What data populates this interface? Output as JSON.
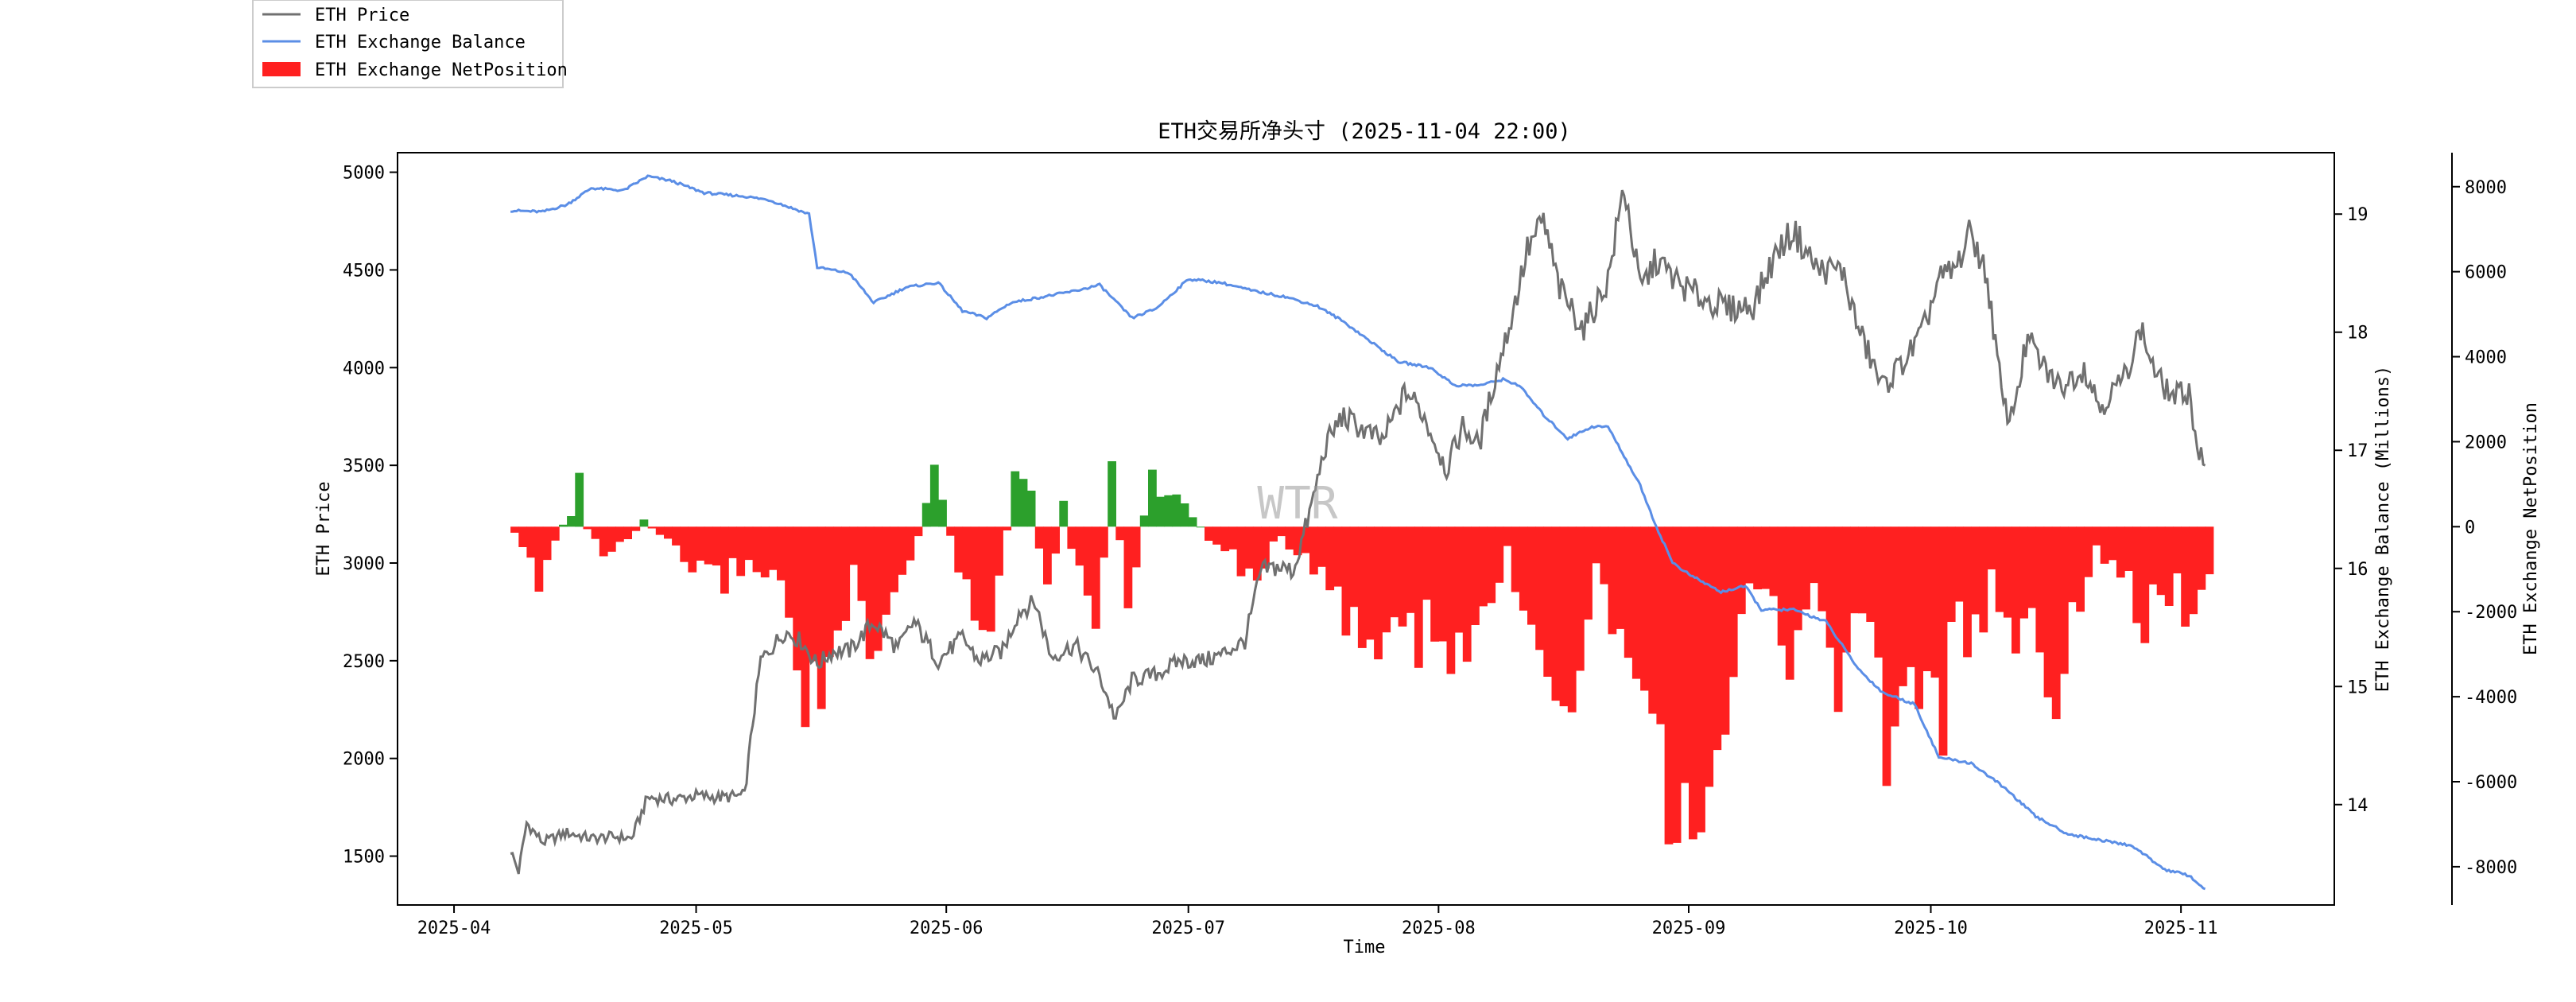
{
  "chart_data": {
    "type": "line",
    "title": "ETH交易所净头寸 (2025-11-04 22:00)",
    "xlabel": "Time",
    "watermark": "WTR",
    "x_range": [
      "2025-04-08",
      "2025-11-04"
    ],
    "x_ticks": [
      {
        "date": "2025-04-01",
        "label": "2025-04"
      },
      {
        "date": "2025-05-01",
        "label": "2025-05"
      },
      {
        "date": "2025-06-01",
        "label": "2025-06"
      },
      {
        "date": "2025-07-01",
        "label": "2025-07"
      },
      {
        "date": "2025-08-01",
        "label": "2025-08"
      },
      {
        "date": "2025-09-01",
        "label": "2025-09"
      },
      {
        "date": "2025-10-01",
        "label": "2025-10"
      },
      {
        "date": "2025-11-01",
        "label": "2025-11"
      }
    ],
    "axes": {
      "price": {
        "label": "ETH Price",
        "ylim": [
          1250,
          5100
        ],
        "ticks": [
          1500,
          2000,
          2500,
          3000,
          3500,
          4000,
          4500,
          5000
        ]
      },
      "balance": {
        "label": "ETH Exchange Balance (Millions)",
        "ylim": [
          13.15,
          19.52
        ],
        "ticks": [
          14,
          15,
          16,
          17,
          18,
          19
        ]
      },
      "netposition": {
        "label": "ETH Exchange NetPosition",
        "ylim": [
          -8900,
          8800
        ],
        "ticks": [
          -8000,
          -6000,
          -4000,
          -2000,
          0,
          2000,
          4000,
          6000,
          8000
        ]
      }
    },
    "legend": {
      "placement": "outside-top-left",
      "entries": [
        "ETH Price",
        "ETH Exchange Balance",
        "ETH Exchange NetPosition"
      ]
    },
    "colors": {
      "price": "#707070",
      "balance": "#5b8ee6",
      "net_negative": "#ff2020",
      "net_positive": "#2ca02c"
    },
    "series": [
      {
        "name": "ETH Price",
        "axis": "price",
        "style": "line",
        "points": [
          [
            "2025-04-08",
            1530
          ],
          [
            "2025-04-09",
            1420
          ],
          [
            "2025-04-10",
            1670
          ],
          [
            "2025-04-12",
            1570
          ],
          [
            "2025-04-15",
            1620
          ],
          [
            "2025-04-18",
            1590
          ],
          [
            "2025-04-21",
            1600
          ],
          [
            "2025-04-23",
            1590
          ],
          [
            "2025-04-25",
            1800
          ],
          [
            "2025-04-28",
            1790
          ],
          [
            "2025-05-01",
            1810
          ],
          [
            "2025-05-04",
            1800
          ],
          [
            "2025-05-07",
            1810
          ],
          [
            "2025-05-08",
            2180
          ],
          [
            "2025-05-09",
            2500
          ],
          [
            "2025-05-10",
            2550
          ],
          [
            "2025-05-12",
            2650
          ],
          [
            "2025-05-14",
            2600
          ],
          [
            "2025-05-16",
            2480
          ],
          [
            "2025-05-18",
            2550
          ],
          [
            "2025-05-20",
            2550
          ],
          [
            "2025-05-23",
            2700
          ],
          [
            "2025-05-26",
            2560
          ],
          [
            "2025-05-28",
            2700
          ],
          [
            "2025-05-31",
            2500
          ],
          [
            "2025-06-03",
            2620
          ],
          [
            "2025-06-05",
            2500
          ],
          [
            "2025-06-08",
            2550
          ],
          [
            "2025-06-10",
            2750
          ],
          [
            "2025-06-12",
            2800
          ],
          [
            "2025-06-14",
            2520
          ],
          [
            "2025-06-17",
            2580
          ],
          [
            "2025-06-20",
            2420
          ],
          [
            "2025-06-22",
            2200
          ],
          [
            "2025-06-24",
            2400
          ],
          [
            "2025-06-27",
            2430
          ],
          [
            "2025-06-30",
            2500
          ],
          [
            "2025-07-03",
            2500
          ],
          [
            "2025-07-05",
            2530
          ],
          [
            "2025-07-08",
            2600
          ],
          [
            "2025-07-09",
            2780
          ],
          [
            "2025-07-10",
            2960
          ],
          [
            "2025-07-12",
            2980
          ],
          [
            "2025-07-14",
            2960
          ],
          [
            "2025-07-16",
            3250
          ],
          [
            "2025-07-18",
            3600
          ],
          [
            "2025-07-20",
            3750
          ],
          [
            "2025-07-22",
            3700
          ],
          [
            "2025-07-25",
            3620
          ],
          [
            "2025-07-28",
            3880
          ],
          [
            "2025-07-30",
            3770
          ],
          [
            "2025-08-02",
            3480
          ],
          [
            "2025-08-04",
            3700
          ],
          [
            "2025-08-06",
            3600
          ],
          [
            "2025-08-08",
            3950
          ],
          [
            "2025-08-10",
            4250
          ],
          [
            "2025-08-12",
            4600
          ],
          [
            "2025-08-14",
            4750
          ],
          [
            "2025-08-16",
            4400
          ],
          [
            "2025-08-19",
            4200
          ],
          [
            "2025-08-22",
            4450
          ],
          [
            "2025-08-24",
            4930
          ],
          [
            "2025-08-26",
            4400
          ],
          [
            "2025-08-28",
            4550
          ],
          [
            "2025-08-31",
            4420
          ],
          [
            "2025-09-03",
            4350
          ],
          [
            "2025-09-06",
            4300
          ],
          [
            "2025-09-09",
            4320
          ],
          [
            "2025-09-12",
            4600
          ],
          [
            "2025-09-14",
            4700
          ],
          [
            "2025-09-17",
            4500
          ],
          [
            "2025-09-20",
            4500
          ],
          [
            "2025-09-22",
            4200
          ],
          [
            "2025-09-25",
            3900
          ],
          [
            "2025-09-28",
            4050
          ],
          [
            "2025-09-30",
            4180
          ],
          [
            "2025-10-02",
            4450
          ],
          [
            "2025-10-04",
            4500
          ],
          [
            "2025-10-06",
            4700
          ],
          [
            "2025-10-08",
            4450
          ],
          [
            "2025-10-10",
            3800
          ],
          [
            "2025-10-11",
            3750
          ],
          [
            "2025-10-13",
            4150
          ],
          [
            "2025-10-15",
            4000
          ],
          [
            "2025-10-17",
            3900
          ],
          [
            "2025-10-20",
            4000
          ],
          [
            "2025-10-22",
            3800
          ],
          [
            "2025-10-25",
            3950
          ],
          [
            "2025-10-27",
            4200
          ],
          [
            "2025-10-29",
            3950
          ],
          [
            "2025-10-31",
            3850
          ],
          [
            "2025-11-02",
            3880
          ],
          [
            "2025-11-03",
            3600
          ],
          [
            "2025-11-04",
            3480
          ]
        ]
      },
      {
        "name": "ETH Exchange Balance",
        "axis": "balance",
        "style": "line",
        "points": [
          [
            "2025-04-08",
            19.03
          ],
          [
            "2025-04-12",
            19.02
          ],
          [
            "2025-04-15",
            19.08
          ],
          [
            "2025-04-18",
            19.22
          ],
          [
            "2025-04-22",
            19.2
          ],
          [
            "2025-04-25",
            19.32
          ],
          [
            "2025-04-28",
            19.28
          ],
          [
            "2025-05-02",
            19.18
          ],
          [
            "2025-05-07",
            19.15
          ],
          [
            "2025-05-10",
            19.12
          ],
          [
            "2025-05-15",
            19.0
          ],
          [
            "2025-05-16",
            18.55
          ],
          [
            "2025-05-20",
            18.5
          ],
          [
            "2025-05-23",
            18.25
          ],
          [
            "2025-05-27",
            18.38
          ],
          [
            "2025-05-31",
            18.42
          ],
          [
            "2025-06-03",
            18.18
          ],
          [
            "2025-06-06",
            18.12
          ],
          [
            "2025-06-09",
            18.25
          ],
          [
            "2025-06-13",
            18.3
          ],
          [
            "2025-06-17",
            18.35
          ],
          [
            "2025-06-20",
            18.4
          ],
          [
            "2025-06-24",
            18.12
          ],
          [
            "2025-06-27",
            18.2
          ],
          [
            "2025-07-01",
            18.45
          ],
          [
            "2025-07-05",
            18.42
          ],
          [
            "2025-07-09",
            18.35
          ],
          [
            "2025-07-13",
            18.3
          ],
          [
            "2025-07-17",
            18.22
          ],
          [
            "2025-07-20",
            18.1
          ],
          [
            "2025-07-24",
            17.9
          ],
          [
            "2025-07-27",
            17.75
          ],
          [
            "2025-07-31",
            17.7
          ],
          [
            "2025-08-03",
            17.55
          ],
          [
            "2025-08-06",
            17.55
          ],
          [
            "2025-08-09",
            17.6
          ],
          [
            "2025-08-11",
            17.55
          ],
          [
            "2025-08-14",
            17.3
          ],
          [
            "2025-08-17",
            17.1
          ],
          [
            "2025-08-20",
            17.2
          ],
          [
            "2025-08-22",
            17.2
          ],
          [
            "2025-08-24",
            16.95
          ],
          [
            "2025-08-26",
            16.7
          ],
          [
            "2025-08-28",
            16.35
          ],
          [
            "2025-08-30",
            16.05
          ],
          [
            "2025-09-01",
            15.95
          ],
          [
            "2025-09-05",
            15.8
          ],
          [
            "2025-09-08",
            15.85
          ],
          [
            "2025-09-10",
            15.65
          ],
          [
            "2025-09-14",
            15.65
          ],
          [
            "2025-09-18",
            15.55
          ],
          [
            "2025-09-22",
            15.15
          ],
          [
            "2025-09-25",
            14.95
          ],
          [
            "2025-09-29",
            14.85
          ],
          [
            "2025-10-02",
            14.4
          ],
          [
            "2025-10-06",
            14.35
          ],
          [
            "2025-10-10",
            14.15
          ],
          [
            "2025-10-14",
            13.9
          ],
          [
            "2025-10-18",
            13.75
          ],
          [
            "2025-10-22",
            13.7
          ],
          [
            "2025-10-26",
            13.65
          ],
          [
            "2025-10-30",
            13.45
          ],
          [
            "2025-11-02",
            13.4
          ],
          [
            "2025-11-04",
            13.28
          ]
        ]
      },
      {
        "name": "ETH Exchange NetPosition",
        "axis": "netposition",
        "style": "bar",
        "points": [
          [
            "2025-04-08",
            -200
          ],
          [
            "2025-04-11",
            -1400
          ],
          [
            "2025-04-13",
            -300
          ],
          [
            "2025-04-15",
            400
          ],
          [
            "2025-04-16",
            1200
          ],
          [
            "2025-04-17",
            -100
          ],
          [
            "2025-04-19",
            -700
          ],
          [
            "2025-04-22",
            -500
          ],
          [
            "2025-04-24",
            200
          ],
          [
            "2025-04-26",
            -300
          ],
          [
            "2025-04-29",
            -900
          ],
          [
            "2025-05-03",
            -1500
          ],
          [
            "2025-05-07",
            -1000
          ],
          [
            "2025-05-10",
            -1200
          ],
          [
            "2025-05-13",
            -3500
          ],
          [
            "2025-05-15",
            -5000
          ],
          [
            "2025-05-17",
            -4000
          ],
          [
            "2025-05-20",
            -1500
          ],
          [
            "2025-05-22",
            -4500
          ],
          [
            "2025-05-25",
            -2000
          ],
          [
            "2025-05-28",
            -300
          ],
          [
            "2025-05-30",
            1600
          ],
          [
            "2025-06-01",
            -200
          ],
          [
            "2025-06-03",
            -2000
          ],
          [
            "2025-06-05",
            -2800
          ],
          [
            "2025-06-07",
            -1500
          ],
          [
            "2025-06-09",
            1200
          ],
          [
            "2025-06-11",
            800
          ],
          [
            "2025-06-13",
            -1800
          ],
          [
            "2025-06-15",
            600
          ],
          [
            "2025-06-17",
            -1600
          ],
          [
            "2025-06-19",
            -2800
          ],
          [
            "2025-06-21",
            1400
          ],
          [
            "2025-06-23",
            -2200
          ],
          [
            "2025-06-26",
            1600
          ],
          [
            "2025-06-28",
            900
          ],
          [
            "2025-06-30",
            600
          ],
          [
            "2025-07-03",
            -300
          ],
          [
            "2025-07-06",
            -900
          ],
          [
            "2025-07-09",
            -1400
          ],
          [
            "2025-07-12",
            -200
          ],
          [
            "2025-07-15",
            -1000
          ],
          [
            "2025-07-18",
            -2000
          ],
          [
            "2025-07-21",
            -2500
          ],
          [
            "2025-07-24",
            -3500
          ],
          [
            "2025-07-27",
            -2800
          ],
          [
            "2025-07-29",
            -3000
          ],
          [
            "2025-08-01",
            -3200
          ],
          [
            "2025-08-03",
            -4000
          ],
          [
            "2025-08-06",
            -2500
          ],
          [
            "2025-08-09",
            -800
          ],
          [
            "2025-08-11",
            -2000
          ],
          [
            "2025-08-14",
            -3500
          ],
          [
            "2025-08-16",
            -4600
          ],
          [
            "2025-08-18",
            -3200
          ],
          [
            "2025-08-20",
            -1000
          ],
          [
            "2025-08-22",
            -2500
          ],
          [
            "2025-08-25",
            -3200
          ],
          [
            "2025-08-27",
            -4500
          ],
          [
            "2025-08-29",
            -8000
          ],
          [
            "2025-08-31",
            -6500
          ],
          [
            "2025-09-02",
            -7000
          ],
          [
            "2025-09-04",
            -5000
          ],
          [
            "2025-09-07",
            -2800
          ],
          [
            "2025-09-10",
            -1500
          ],
          [
            "2025-09-13",
            -3500
          ],
          [
            "2025-09-16",
            -2000
          ],
          [
            "2025-09-19",
            -3800
          ],
          [
            "2025-09-22",
            -2200
          ],
          [
            "2025-09-25",
            -5800
          ],
          [
            "2025-09-27",
            -4800
          ],
          [
            "2025-09-29",
            -4000
          ],
          [
            "2025-10-02",
            -5000
          ],
          [
            "2025-10-04",
            -2500
          ],
          [
            "2025-10-06",
            -3500
          ],
          [
            "2025-10-08",
            -1800
          ],
          [
            "2025-10-11",
            -3000
          ],
          [
            "2025-10-13",
            -2500
          ],
          [
            "2025-10-16",
            -4300
          ],
          [
            "2025-10-19",
            -2500
          ],
          [
            "2025-10-21",
            -600
          ],
          [
            "2025-10-24",
            -1200
          ],
          [
            "2025-10-27",
            -3200
          ],
          [
            "2025-10-29",
            -1500
          ],
          [
            "2025-11-01",
            -2200
          ],
          [
            "2025-11-03",
            -1500
          ],
          [
            "2025-11-04",
            -1700
          ]
        ]
      }
    ]
  }
}
